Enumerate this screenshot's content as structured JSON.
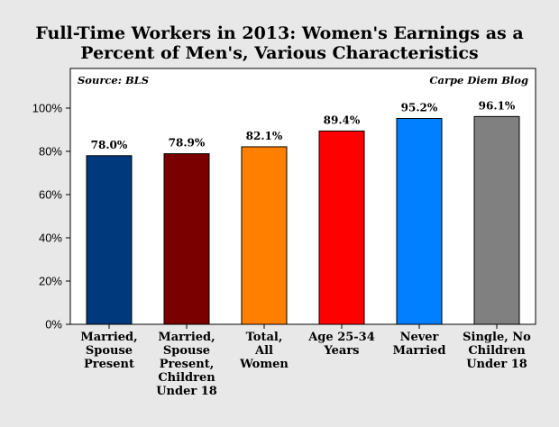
{
  "chart_data": {
    "type": "bar",
    "title_lines": [
      "Full-Time Workers in 2013: Women's Earnings as a",
      "Percent of Men's, Various Characteristics"
    ],
    "source": "Source: BLS",
    "credit": "Carpe Diem Blog",
    "categories": [
      [
        "Married,",
        "Spouse",
        "Present"
      ],
      [
        "Married,",
        "Spouse",
        "Present,",
        "Children",
        "Under 18"
      ],
      [
        "Total,",
        "All",
        "Women"
      ],
      [
        "Age 25-34",
        "Years"
      ],
      [
        "Never",
        "Married"
      ],
      [
        "Single, No",
        "Children",
        "Under 18"
      ]
    ],
    "values": [
      78.0,
      78.9,
      82.1,
      89.4,
      95.2,
      96.1
    ],
    "value_labels": [
      "78.0%",
      "78.9%",
      "82.1%",
      "89.4%",
      "95.2%",
      "96.1%"
    ],
    "colors": [
      "#003a7d",
      "#7a0000",
      "#ff8000",
      "#ff0000",
      "#0080ff",
      "#808080"
    ],
    "ylim": [
      0,
      100
    ],
    "yticks": [
      0,
      20,
      40,
      60,
      80,
      100
    ],
    "ytick_labels": [
      "0%",
      "20%",
      "40%",
      "60%",
      "80%",
      "100%"
    ],
    "grid": false,
    "legend": "none"
  }
}
